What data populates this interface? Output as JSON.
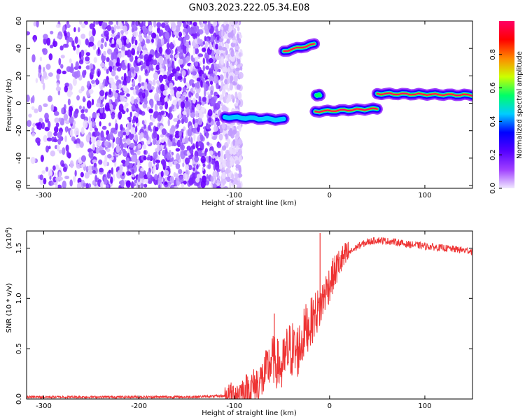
{
  "title": "GN03.2023.222.05.34.E08",
  "chart_data": [
    {
      "type": "heatmap",
      "xlabel": "Height of straight line (km)",
      "ylabel": "Frequency (Hz)",
      "xlim": [
        -318,
        150
      ],
      "ylim": [
        -62,
        60
      ],
      "xticks": [
        -300,
        -200,
        -100,
        0,
        100
      ],
      "yticks": [
        -60,
        -40,
        -20,
        0,
        20,
        40,
        60
      ],
      "colorbar": {
        "label": "Normalized spectral amplitude",
        "range": [
          0.0,
          1.0
        ],
        "ticks": [
          0.0,
          0.2,
          0.4,
          0.6,
          0.8
        ],
        "colormap": "rainbow",
        "colors": [
          "#f0e8ff",
          "#a040ff",
          "#5500ff",
          "#0000ff",
          "#00ccff",
          "#00ff66",
          "#ccff00",
          "#ff8800",
          "#ff0000",
          "#ff0066"
        ]
      },
      "noise_region": {
        "x_range": [
          -318,
          -100
        ],
        "freq_range": [
          -62,
          60
        ],
        "amplitude": 0.1
      },
      "signal_segments": [
        {
          "x_start": -110,
          "x_end": -48,
          "freq_start": -10,
          "freq_end": -12,
          "peak_amplitude": 0.45
        },
        {
          "x_start": -48,
          "x_end": -16,
          "freq_start": 38,
          "freq_end": 43,
          "peak_amplitude": 0.95
        },
        {
          "x_start": -14,
          "x_end": -10,
          "freq_start": 6,
          "freq_end": 6,
          "peak_amplitude": 0.6
        },
        {
          "x_start": -15,
          "x_end": 50,
          "freq_start": -6,
          "freq_end": -4,
          "peak_amplitude": 0.9
        },
        {
          "x_start": 50,
          "x_end": 150,
          "freq_start": 7,
          "freq_end": 6,
          "peak_amplitude": 0.9
        }
      ]
    },
    {
      "type": "line",
      "xlabel": "Height of straight line (km)",
      "ylabel": "SNR (10 * v/v)",
      "yscale_label": "(x10",
      "yscale_exponent": "4",
      "xlim": [
        -318,
        150
      ],
      "ylim": [
        0,
        1.67
      ],
      "xticks": [
        -300,
        -200,
        -100,
        0,
        100
      ],
      "yticks": [
        0.0,
        0.5,
        1.0,
        1.5
      ],
      "ytick_labels": [
        "0.0",
        "0.5",
        "1.0",
        "1.5"
      ],
      "color": "#ee3333",
      "series": [
        {
          "x": [
            -318,
            -250,
            -200,
            -150,
            -110,
            -100,
            -90,
            -80,
            -70,
            -65,
            -60,
            -55,
            -50,
            -45,
            -40,
            -35,
            -30,
            -25,
            -20,
            -15,
            -10,
            -5,
            0,
            5,
            10,
            20,
            30,
            40,
            50,
            60,
            70,
            80,
            90,
            100,
            110,
            120,
            130,
            140,
            150
          ],
          "y": [
            0.02,
            0.02,
            0.02,
            0.02,
            0.03,
            0.05,
            0.08,
            0.12,
            0.2,
            0.3,
            0.4,
            0.35,
            0.3,
            0.45,
            0.5,
            0.45,
            0.55,
            0.7,
            0.75,
            0.85,
            0.9,
            1.05,
            1.15,
            1.25,
            1.35,
            1.45,
            1.52,
            1.56,
            1.58,
            1.57,
            1.56,
            1.54,
            1.53,
            1.52,
            1.51,
            1.5,
            1.49,
            1.48,
            1.47
          ]
        }
      ],
      "spikes": [
        {
          "x": -58,
          "y": 0.85
        },
        {
          "x": -10,
          "y": 1.65
        }
      ]
    }
  ]
}
